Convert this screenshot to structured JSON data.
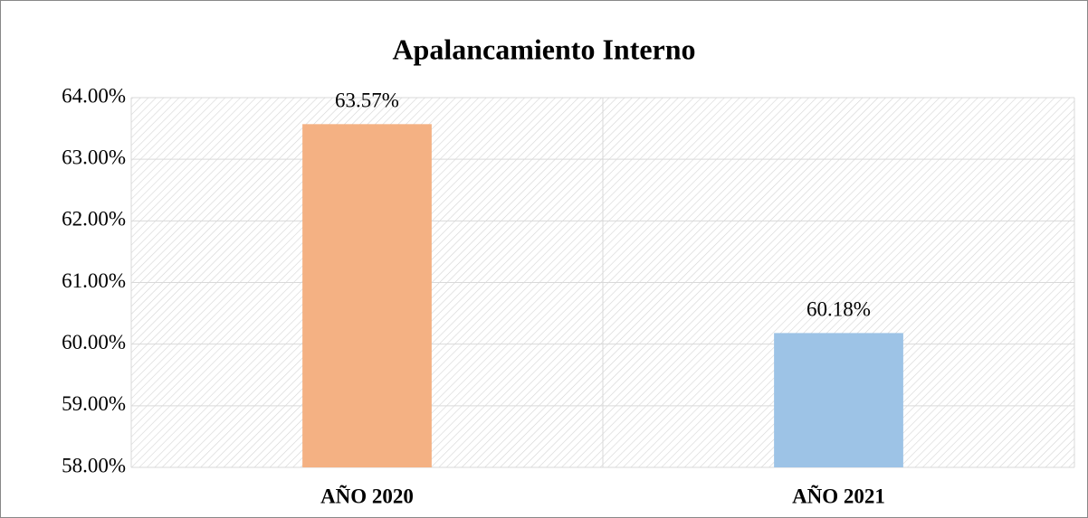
{
  "chart_data": {
    "type": "bar",
    "title": "Apalancamiento Interno",
    "categories": [
      "AÑO 2020",
      "AÑO 2021"
    ],
    "values": [
      63.57,
      60.18
    ],
    "value_labels": [
      "63.57%",
      "60.18%"
    ],
    "colors": [
      "#f4b183",
      "#9dc3e6"
    ],
    "ylim": [
      58,
      64
    ],
    "yticks": [
      {
        "value": 58,
        "label": "58.00%"
      },
      {
        "value": 59,
        "label": "59.00%"
      },
      {
        "value": 60,
        "label": "60.00%"
      },
      {
        "value": 61,
        "label": "61.00%"
      },
      {
        "value": 62,
        "label": "62.00%"
      },
      {
        "value": 63,
        "label": "63.00%"
      },
      {
        "value": 64,
        "label": "64.00%"
      }
    ],
    "grid": true
  }
}
